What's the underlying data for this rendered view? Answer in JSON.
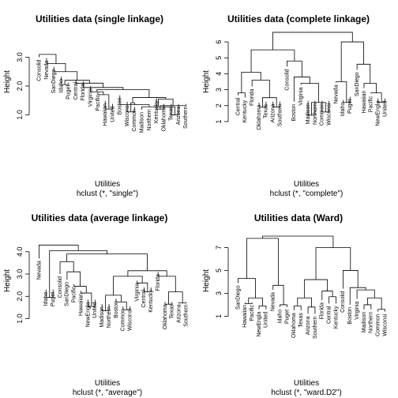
{
  "chart_data": [
    {
      "type": "dendrogram",
      "title": "Utilities data (single linkage)",
      "xlabel": "Utilities",
      "sublabel": "hclust (*, \"single\")",
      "ylabel": "Height",
      "ylim": [
        0.6,
        3.7
      ],
      "yticks": [
        1.0,
        2.0,
        3.0
      ],
      "ytick_labels": [
        "1.0",
        "2.0",
        "3.0"
      ],
      "leaves": [
        "Consolid",
        "Nevada",
        "SanDiego",
        "Idaho",
        "Puget",
        "Central",
        "Florida",
        "Virginia",
        "Pacific",
        "Hawaiian",
        "United",
        "Boston",
        "Wisconsi",
        "Common",
        "Madison",
        "Northern",
        "Kentucky",
        "Oklahoma",
        "Texas",
        "Arizona",
        "Southern"
      ],
      "leaf_heights": [
        3.0,
        2.97,
        2.67,
        2.33,
        2.12,
        2.22,
        2.16,
        2.0,
        1.78,
        1.48,
        1.38,
        1.68,
        1.45,
        1.28,
        1.18,
        1.28,
        1.58,
        1.38,
        1.38,
        1.38,
        1.38
      ],
      "merges": [
        [
          -19,
          -20,
          1.0
        ],
        [
          -13,
          -14,
          1.1
        ],
        [
          -10,
          -11,
          1.2
        ],
        [
          -17,
          -18,
          1.2
        ],
        [
          -15,
          1,
          1.28
        ],
        [
          -21,
          4,
          1.32
        ],
        [
          -12,
          -16,
          1.35
        ],
        [
          2,
          7,
          1.42
        ],
        [
          6,
          5,
          1.55
        ],
        [
          9,
          8,
          1.6
        ],
        [
          -9,
          3,
          1.7
        ],
        [
          -8,
          11,
          1.8
        ],
        [
          12,
          10,
          1.88
        ],
        [
          -7,
          13,
          1.95
        ],
        [
          -4,
          -5,
          2.05
        ],
        [
          -6,
          14,
          2.1
        ],
        [
          15,
          16,
          2.2
        ],
        [
          -3,
          17,
          2.5
        ],
        [
          -2,
          18,
          2.78
        ],
        [
          -1,
          19,
          3.1
        ]
      ],
      "order": [
        -1,
        -2,
        -3,
        -4,
        -5,
        -6,
        -7,
        -8,
        -9,
        -10,
        -11,
        -12,
        -13,
        -14,
        -15,
        -16,
        -17,
        -18,
        -19,
        -20,
        -21
      ]
    },
    {
      "type": "dendrogram",
      "title": "Utilities data (complete linkage)",
      "xlabel": "Utilities",
      "sublabel": "hclust (*, \"complete\")",
      "ylabel": "Height",
      "ylim": [
        0.7,
        6.3
      ],
      "yticks": [
        1,
        2,
        3,
        4,
        5,
        6
      ],
      "ytick_labels": [
        "1",
        "2",
        "3",
        "4",
        "5",
        "6"
      ],
      "leaves": [
        "Central",
        "Kentucky",
        "Florida",
        "Oklahoma",
        "Texas",
        "Arizona",
        "Southern",
        "Consolid",
        "Boston",
        "Virginia",
        "Madison",
        "Northern",
        "Common",
        "Wisconsi",
        "Nevada",
        "Idaho",
        "Puget",
        "SanDiego",
        "Hawaiian",
        "Pacific",
        "NewEngla",
        "United"
      ],
      "leaf_heights": [
        2.65,
        2.5,
        3.2,
        2.2,
        2.25,
        2.25,
        2.25,
        4.45,
        2.25,
        3.3,
        2.3,
        2.3,
        2.3,
        2.3,
        3.45,
        2.35,
        2.55,
        4.25,
        3.1,
        2.75,
        2.45,
        2.45
      ],
      "merges": [
        [
          -1,
          -2,
          2.8
        ],
        [
          -4,
          -5,
          1.9
        ],
        [
          -6,
          -7,
          1.9
        ],
        [
          2,
          3,
          2.5
        ],
        [
          -3,
          4,
          3.6
        ],
        [
          1,
          5,
          4.1
        ],
        [
          -11,
          -12,
          1.4
        ],
        [
          -13,
          -14,
          1.6
        ],
        [
          7,
          8,
          2.2
        ],
        [
          -10,
          9,
          3.4
        ],
        [
          -9,
          10,
          3.8
        ],
        [
          -8,
          11,
          4.8
        ],
        [
          6,
          12,
          5.5
        ],
        [
          -16,
          -17,
          2.2
        ],
        [
          -15,
          14,
          3.5
        ],
        [
          -21,
          -22,
          2.2
        ],
        [
          -20,
          16,
          2.8
        ],
        [
          -19,
          17,
          3.4
        ],
        [
          -18,
          18,
          4.6
        ],
        [
          15,
          19,
          6.0
        ],
        [
          13,
          20,
          6.6
        ]
      ],
      "order": [
        -1,
        -2,
        -3,
        -4,
        -5,
        -6,
        -7,
        -8,
        -9,
        -10,
        -11,
        -12,
        -13,
        -14,
        -15,
        -16,
        -17,
        -18,
        -19,
        -20,
        -21,
        -22
      ]
    },
    {
      "type": "dendrogram",
      "title": "Utilities data (average linkage)",
      "xlabel": "Utilities",
      "sublabel": "hclust (*, \"average\")",
      "ylabel": "Height",
      "ylim": [
        0.7,
        4.7
      ],
      "yticks": [
        1.0,
        2.0,
        3.0,
        4.0
      ],
      "ytick_labels": [
        "1.0",
        "2.0",
        "3.0",
        "4.0"
      ],
      "leaves": [
        "Nevada",
        "Idaho",
        "Puget",
        "Consolid",
        "SanDiego",
        "Pacific",
        "Hawaiian",
        "NewEngla",
        "United",
        "Madison",
        "Northern",
        "Boston",
        "Common",
        "Wisconsi",
        "Virginia",
        "Central",
        "Kentucky",
        "Florida",
        "Oklahoma",
        "Texas",
        "Arizona",
        "Southern"
      ],
      "leaf_heights": [
        3.7,
        2.3,
        2.3,
        3.0,
        2.75,
        2.55,
        2.25,
        1.85,
        1.85,
        1.65,
        1.65,
        1.9,
        1.55,
        1.55,
        2.7,
        2.4,
        2.4,
        3.1,
        1.75,
        1.75,
        1.75,
        1.75
      ],
      "merges": [
        [
          -2,
          -3,
          1.95
        ],
        [
          -10,
          -11,
          1.35
        ],
        [
          -13,
          -14,
          1.4
        ],
        [
          -8,
          -9,
          1.55
        ],
        [
          -19,
          -20,
          1.65
        ],
        [
          -21,
          -22,
          1.7
        ],
        [
          -7,
          4,
          2.15
        ],
        [
          -12,
          3,
          1.75
        ],
        [
          2,
          8,
          2.05
        ],
        [
          -16,
          -17,
          2.2
        ],
        [
          5,
          6,
          2.2
        ],
        [
          -15,
          10,
          2.6
        ],
        [
          9,
          12,
          2.9
        ],
        [
          -18,
          11,
          2.9
        ],
        [
          13,
          14,
          3.15
        ],
        [
          -6,
          7,
          2.45
        ],
        [
          -5,
          16,
          3.1
        ],
        [
          -4,
          17,
          3.55
        ],
        [
          15,
          18,
          3.9
        ],
        [
          1,
          19,
          4.05
        ],
        [
          -1,
          20,
          4.3
        ]
      ],
      "order": [
        -1,
        -2,
        -3,
        -4,
        -5,
        -6,
        -7,
        -8,
        -9,
        -10,
        -11,
        -12,
        -13,
        -14,
        -15,
        -16,
        -17,
        -18,
        -19,
        -20,
        -21,
        -22
      ]
    },
    {
      "type": "dendrogram",
      "title": "Utilities data (Ward)",
      "xlabel": "Utilities",
      "sublabel": "hclust (*, \"ward.D2\")",
      "ylabel": "Height",
      "ylim": [
        0.2,
        8.0
      ],
      "yticks": [
        1,
        3,
        5,
        7
      ],
      "ytick_labels": [
        "1",
        "3",
        "5",
        "7"
      ],
      "leaves": [
        "SanDiego",
        "Hawaiian",
        "Pacific",
        "NewEngla",
        "United",
        "Nevada",
        "Idaho",
        "Puget",
        "Oklahoma",
        "Texas",
        "Arizona",
        "Southern",
        "Florida",
        "Central",
        "Kentucky",
        "Consolid",
        "Boston",
        "Virginia",
        "Madison",
        "Northern",
        "Common",
        "Wisconsi"
      ],
      "leaf_heights": [
        3.9,
        2.2,
        2.2,
        1.6,
        1.6,
        3.3,
        1.8,
        1.8,
        1.5,
        1.5,
        1.2,
        1.2,
        2.4,
        2.1,
        2.1,
        3.4,
        2.0,
        2.5,
        1.6,
        1.6,
        1.4,
        1.4
      ],
      "merges": [
        [
          -4,
          -5,
          1.9
        ],
        [
          -2,
          -3,
          2.1
        ],
        [
          2,
          1,
          2.6
        ],
        [
          -1,
          3,
          4.3
        ],
        [
          -7,
          -8,
          2.0
        ],
        [
          -6,
          5,
          3.7
        ],
        [
          4,
          6,
          7.8
        ],
        [
          -9,
          -10,
          1.9
        ],
        [
          -11,
          -12,
          1.8
        ],
        [
          8,
          9,
          2.6
        ],
        [
          -14,
          -15,
          2.7
        ],
        [
          -13,
          11,
          3.2
        ],
        [
          10,
          12,
          4.2
        ],
        [
          -19,
          -20,
          2.0
        ],
        [
          -21,
          -22,
          1.6
        ],
        [
          14,
          15,
          2.6
        ],
        [
          -18,
          16,
          3.3
        ],
        [
          -17,
          17,
          3.5
        ],
        [
          -16,
          18,
          5.0
        ],
        [
          13,
          19,
          7.0
        ],
        [
          7,
          20,
          8.0
        ]
      ],
      "order": [
        -1,
        -2,
        -3,
        -4,
        -5,
        -6,
        -7,
        -8,
        -9,
        -10,
        -11,
        -12,
        -13,
        -14,
        -15,
        -16,
        -17,
        -18,
        -19,
        -20,
        -21,
        -22
      ]
    }
  ]
}
